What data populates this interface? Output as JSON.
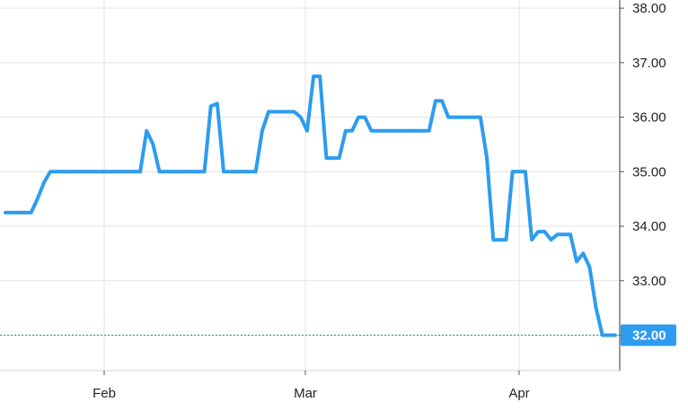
{
  "chart_data": {
    "type": "line",
    "y_ticks": [
      "38.00",
      "37.00",
      "36.00",
      "35.00",
      "34.00",
      "33.00",
      "32.00"
    ],
    "x_ticks": [
      "Feb",
      "Mar",
      "Apr"
    ],
    "ylim": [
      31.35,
      38.15
    ],
    "y_axis_position": "right",
    "grid": true,
    "line_color": "#2d9cf0",
    "reference_line": {
      "value": 32.0,
      "color": "#1a9e8f",
      "style": "dotted"
    },
    "last_price": {
      "value": 32.0,
      "label": "32.00",
      "color": "#2d9cf0"
    },
    "series": [
      {
        "values": [
          34.25,
          34.25,
          34.25,
          34.25,
          34.25,
          34.5,
          34.8,
          35.0,
          35.0,
          35.0,
          35.0,
          35.0,
          35.0,
          35.0,
          35.0,
          35.0,
          35.0,
          35.0,
          35.0,
          35.0,
          35.0,
          35.0,
          35.75,
          35.5,
          35.0,
          35.0,
          35.0,
          35.0,
          35.0,
          35.0,
          35.0,
          35.0,
          36.2,
          36.25,
          35.0,
          35.0,
          35.0,
          35.0,
          35.0,
          35.0,
          35.75,
          36.1,
          36.1,
          36.1,
          36.1,
          36.1,
          36.0,
          35.75,
          36.75,
          36.75,
          35.25,
          35.25,
          35.25,
          35.75,
          35.75,
          36.0,
          36.0,
          35.75,
          35.75,
          35.75,
          35.75,
          35.75,
          35.75,
          35.75,
          35.75,
          35.75,
          35.75,
          36.3,
          36.3,
          36.0,
          36.0,
          36.0,
          36.0,
          36.0,
          36.0,
          35.25,
          33.75,
          33.75,
          33.75,
          35.0,
          35.0,
          35.0,
          33.75,
          33.9,
          33.9,
          33.75,
          33.85,
          33.85,
          33.85,
          33.35,
          33.5,
          33.25,
          32.5,
          32.0,
          32.0,
          32.0
        ]
      }
    ]
  }
}
